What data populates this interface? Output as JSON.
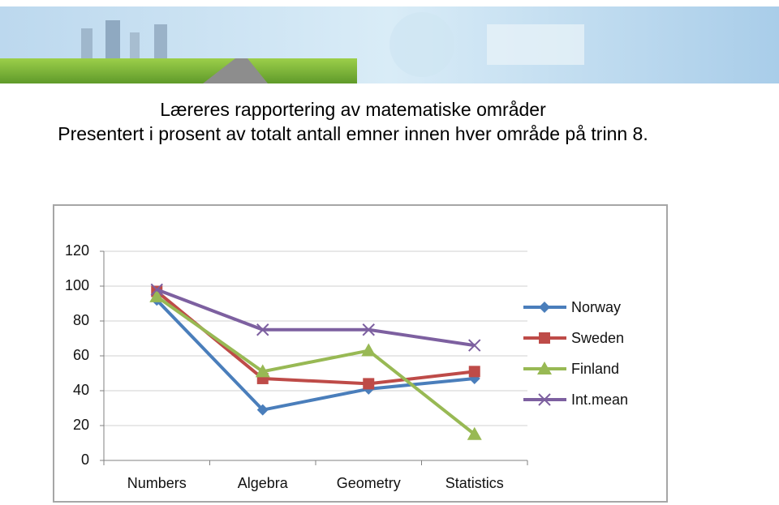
{
  "header": {
    "title": "Læreres rapportering av matematiske områder",
    "subtitle": "Presentert i prosent av totalt antall emner innen hver område på trinn 8."
  },
  "chart_data": {
    "type": "line",
    "categories": [
      "Numbers",
      "Algebra",
      "Geometry",
      "Statistics"
    ],
    "series": [
      {
        "name": "Norway",
        "color": "#4a7ebb",
        "marker": "diamond",
        "values": [
          92,
          29,
          41,
          47
        ]
      },
      {
        "name": "Sweden",
        "color": "#be4b48",
        "marker": "square",
        "values": [
          97,
          47,
          44,
          51
        ]
      },
      {
        "name": "Finland",
        "color": "#98b954",
        "marker": "triangle",
        "values": [
          94,
          51,
          63,
          15
        ]
      },
      {
        "name": "Int.mean",
        "color": "#7d60a0",
        "marker": "x",
        "values": [
          98,
          75,
          75,
          66
        ]
      }
    ],
    "ylim": [
      0,
      120
    ],
    "yticks": [
      0,
      20,
      40,
      60,
      80,
      100,
      120
    ],
    "grid": true,
    "legend": "right"
  }
}
